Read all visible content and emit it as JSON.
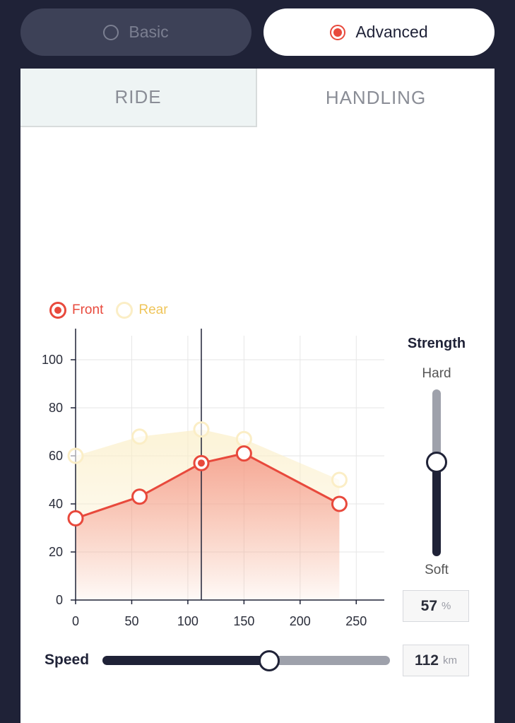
{
  "mode": {
    "basic_label": "Basic",
    "advanced_label": "Advanced",
    "selected": "Advanced"
  },
  "tabs": [
    {
      "label": "RIDE",
      "active": true
    },
    {
      "label": "HANDLING",
      "active": false
    }
  ],
  "legend": {
    "front_label": "Front",
    "rear_label": "Rear"
  },
  "colors": {
    "accent": "#e8493c",
    "rear": "#efc55a",
    "dark": "#1f2237",
    "track_light": "#9ea1ab"
  },
  "strength": {
    "title": "Strength",
    "hard_label": "Hard",
    "soft_label": "Soft",
    "value": "57",
    "unit": "%"
  },
  "speed": {
    "label": "Speed",
    "value": "112",
    "unit": "km"
  },
  "chart_data": {
    "type": "area",
    "x_ticks": [
      "0",
      "50",
      "100",
      "150",
      "200",
      "250"
    ],
    "y_ticks": [
      "0",
      "20",
      "40",
      "60",
      "80",
      "100"
    ],
    "xlim": [
      0,
      275
    ],
    "ylim": [
      0,
      110
    ],
    "grid": true,
    "legend_position": "top-left",
    "cursor_x": 112,
    "series": [
      {
        "name": "Front",
        "x": [
          0,
          57,
          112,
          150,
          235
        ],
        "y": [
          34,
          43,
          57,
          61,
          40
        ],
        "selected_index": 2
      },
      {
        "name": "Rear",
        "x": [
          0,
          57,
          112,
          150,
          235
        ],
        "y": [
          60,
          68,
          71,
          67,
          50
        ]
      }
    ]
  }
}
